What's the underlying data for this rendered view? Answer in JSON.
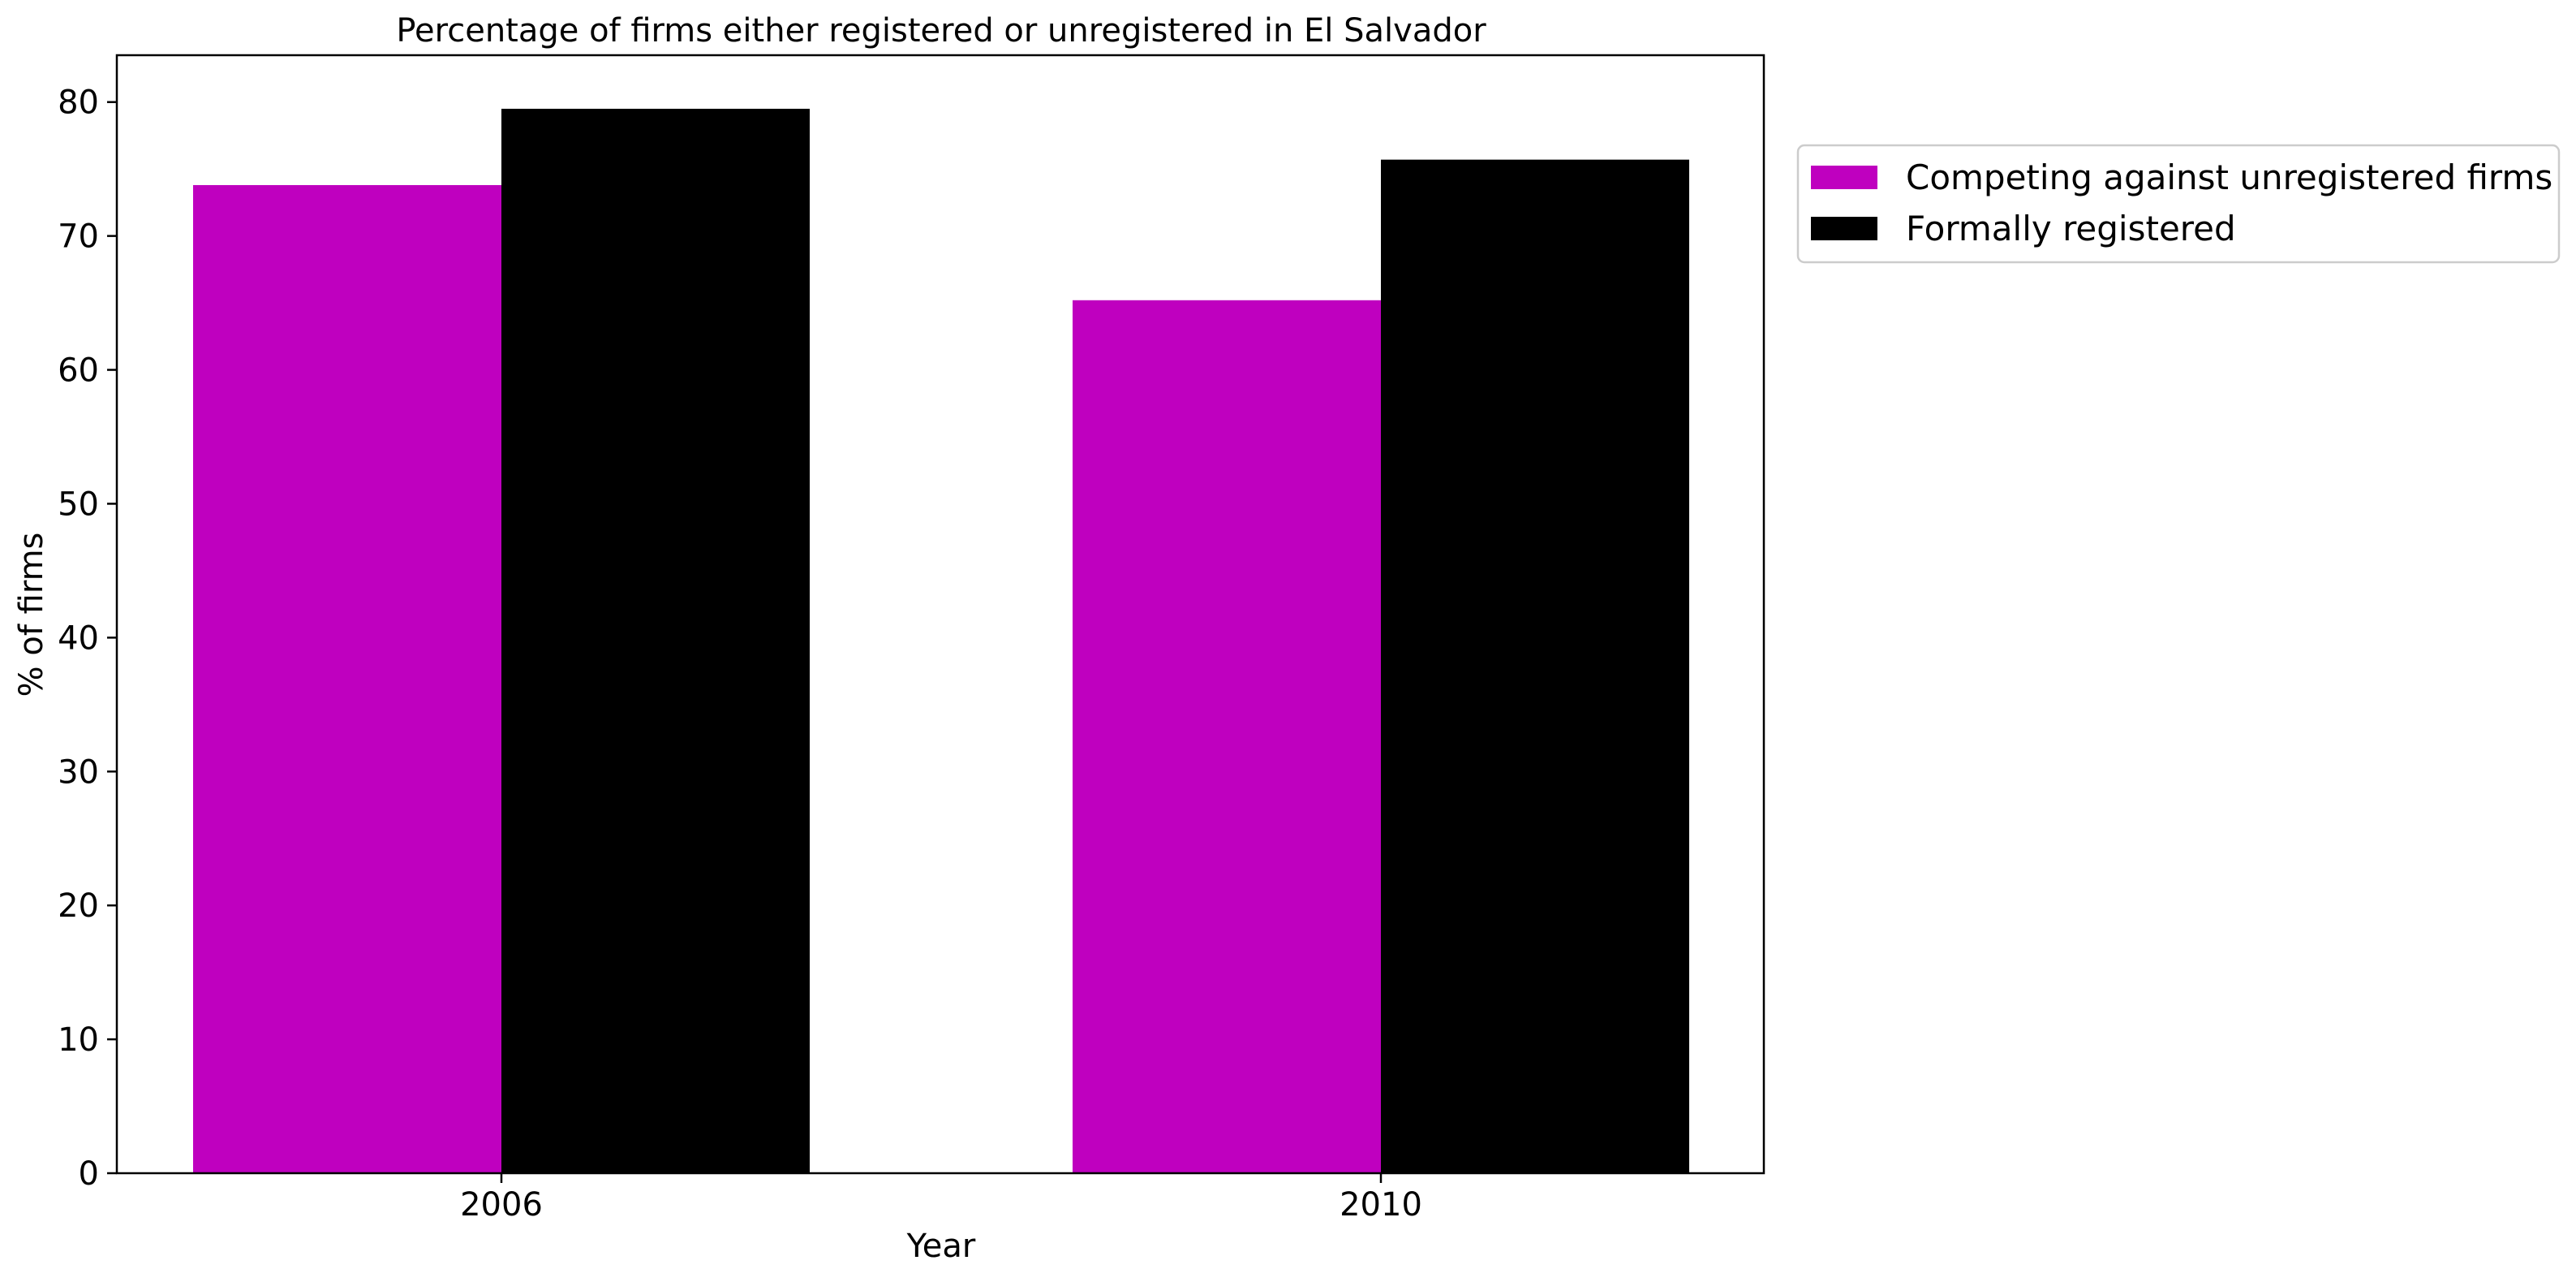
{
  "chart_data": {
    "type": "bar",
    "title": "Percentage of firms either registered or unregistered in El Salvador",
    "xlabel": "Year",
    "ylabel": "% of firms",
    "categories": [
      "2006",
      "2010"
    ],
    "series": [
      {
        "name": "Competing against unregistered firms",
        "color": "#bf00bf",
        "values": [
          73.8,
          65.2
        ]
      },
      {
        "name": "Formally registered",
        "color": "#000000",
        "values": [
          79.5,
          75.7
        ]
      }
    ],
    "ylim": [
      0,
      83.5
    ],
    "yticks": [
      0,
      10,
      20,
      30,
      40,
      50,
      60,
      70,
      80
    ],
    "grid": false,
    "legend_position": "outside-top-right"
  }
}
